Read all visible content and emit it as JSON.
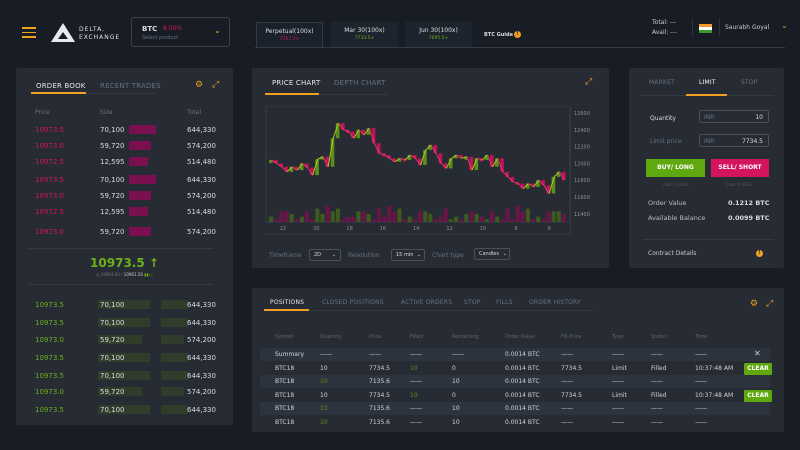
{
  "header": {
    "brand_line1": "DELTA.",
    "brand_line2": "EXCHANGE",
    "product": {
      "symbol": "BTC",
      "change": "8.00%",
      "placeholder": "Select product"
    },
    "contracts": [
      {
        "label": "Perpetual(100x)",
        "price": "7767.5+",
        "active": true,
        "color": "#d4145f"
      },
      {
        "label": "Mar 30(100x)",
        "price": "7733.5+",
        "active": false,
        "color": "#6cb11a"
      },
      {
        "label": "Jun 30(100x)",
        "price": "7695.5+",
        "active": false,
        "color": "#6cb11a"
      }
    ],
    "guide": "BTC Guide",
    "total_label": "Total:",
    "total_value": "---",
    "avail_label": "Avail:",
    "avail_value": "---",
    "user": "Saurabh Goyal"
  },
  "orderbook": {
    "tabs": [
      "ORDER BOOK",
      "RECENT TRADES"
    ],
    "columns": [
      "Price",
      "Size",
      "Total"
    ],
    "asks": [
      {
        "price": "10973.5",
        "size": "70,100",
        "total": "644,330",
        "depth": 1.0
      },
      {
        "price": "10973.0",
        "size": "59,720",
        "total": "574,200",
        "depth": 0.8
      },
      {
        "price": "10972.5",
        "size": "12,595",
        "total": "514,480",
        "depth": 0.7
      },
      {
        "price": "10973.5",
        "size": "70,100",
        "total": "644,330",
        "depth": 1.0
      },
      {
        "price": "10973.0",
        "size": "59,720",
        "total": "574,200",
        "depth": 0.8
      },
      {
        "price": "10972.5",
        "size": "12,595",
        "total": "514,480",
        "depth": 0.7
      },
      {
        "price": "10973.0",
        "size": "59,720",
        "total": "574,200",
        "depth": 0.8
      }
    ],
    "last_price": "10973.5",
    "index_price": "10964.00",
    "mark_price": "10961.56",
    "bids": [
      {
        "price": "10973.5",
        "size": "70,100",
        "total": "644,330",
        "depth": 1.0
      },
      {
        "price": "10973.5",
        "size": "70,100",
        "total": "644,330",
        "depth": 1.0
      },
      {
        "price": "10973.0",
        "size": "59,720",
        "total": "574,200",
        "depth": 0.85
      },
      {
        "price": "10973.5",
        "size": "70,100",
        "total": "644,330",
        "depth": 1.0
      },
      {
        "price": "10973.5",
        "size": "70,100",
        "total": "644,330",
        "depth": 1.0
      },
      {
        "price": "10973.0",
        "size": "59,720",
        "total": "574,200",
        "depth": 0.85
      },
      {
        "price": "10973.5",
        "size": "70,100",
        "total": "644,330",
        "depth": 1.0
      }
    ]
  },
  "chart": {
    "tabs": [
      "PRICE CHART",
      "DEPTH CHART"
    ],
    "timeframe_label": "Timeframe",
    "timeframe": "2D",
    "resolution_label": "Resolution",
    "resolution": "15 min",
    "charttype_label": "Chart type",
    "charttype": "Candles"
  },
  "chart_data": {
    "type": "candlestick",
    "xticks": [
      "22",
      "20",
      "18",
      "16",
      "14",
      "12",
      "10",
      "8",
      "6"
    ],
    "yticks": [
      12600,
      12400,
      12200,
      12000,
      11800,
      11600,
      11400
    ],
    "ylim": [
      11350,
      12650
    ],
    "close": [
      12040,
      12000,
      11960,
      11900,
      11960,
      11920,
      12000,
      11950,
      11860,
      12050,
      12080,
      11960,
      12300,
      12480,
      12400,
      12380,
      12300,
      12400,
      12340,
      12420,
      12240,
      12120,
      12100,
      12060,
      12020,
      12060,
      12040,
      12100,
      12060,
      11980,
      12160,
      12220,
      12120,
      12000,
      11940,
      12060,
      12100,
      12060,
      12080,
      11920,
      12060,
      12040,
      12100,
      11960,
      12060,
      11900,
      11840,
      11780,
      11760,
      11700,
      11760,
      11720,
      11800,
      11740,
      11640,
      11840,
      11900,
      11800
    ],
    "volume": [
      2,
      1,
      4,
      4,
      3,
      1,
      2,
      4,
      1,
      5,
      3,
      6,
      4,
      5,
      1,
      2,
      2,
      4,
      4,
      3,
      1,
      5,
      2,
      6,
      4,
      5,
      1,
      2,
      1,
      4,
      4,
      3,
      1,
      2,
      5,
      1,
      2,
      1,
      3,
      4,
      3,
      2,
      1,
      4,
      2,
      1,
      5,
      1,
      6,
      4,
      5,
      1,
      2,
      1,
      4,
      4,
      4,
      3
    ]
  },
  "order_form": {
    "tabs": [
      "MARKET",
      "LIMIT",
      "STOP"
    ],
    "quantity_label": "Quantity",
    "quantity_unit": "INR",
    "quantity": "10",
    "limit_label": "Limit price",
    "limit_unit": "INR",
    "limit": "7734.5",
    "buy": "BUY/ LONG",
    "sell": "SELL/ SHORT",
    "buy_cost": "Cost: 0.0013",
    "sell_cost": "Cost: 0.0013",
    "order_value_label": "Order Value",
    "order_value": "0.1212 BTC",
    "balance_label": "Available Balance",
    "balance": "0.0099 BTC",
    "contract_details": "Contract Details"
  },
  "positions": {
    "tabs": [
      "POSITIONS",
      "CLOSED POSITIONS",
      "ACTIVE ORDERS",
      "STOP",
      "FILLS",
      "ORDER HISTORY"
    ],
    "columns": [
      "Symbol",
      "Quantity",
      "Price",
      "Filled",
      "Remaining",
      "Order Value",
      "Fill Price",
      "Type",
      "Status",
      "Time"
    ],
    "rows": [
      {
        "cells": [
          "Summary",
          "——",
          "——",
          "——",
          "——",
          "0.0014 BTC",
          "——",
          "——",
          "——",
          "——"
        ],
        "action": "close"
      },
      {
        "cells": [
          "BTC18",
          "10",
          "7734.5",
          "10",
          "0",
          "0.0014 BTC",
          "7734.5",
          "Limit",
          "Filled",
          "10:37:48 AM"
        ],
        "action": "CLEAR"
      },
      {
        "cells": [
          "BTC18",
          "10",
          "7135.6",
          "——",
          "10",
          "0.0014 BTC",
          "——",
          "——",
          "——",
          "——"
        ],
        "action": ""
      },
      {
        "cells": [
          "BTC18",
          "10",
          "7734.5",
          "10",
          "0",
          "0.0014 BTC",
          "7734.5",
          "Limit",
          "Filled",
          "10:37:48 AM"
        ],
        "action": "CLEAR"
      },
      {
        "cells": [
          "BTC18",
          "10",
          "7135.6",
          "——",
          "10",
          "0.0014 BTC",
          "——",
          "——",
          "——",
          "——"
        ],
        "action": ""
      },
      {
        "cells": [
          "BTC18",
          "10",
          "7135.6",
          "——",
          "10",
          "0.0014 BTC",
          "——",
          "——",
          "——",
          "——"
        ],
        "action": ""
      }
    ]
  },
  "colors": {
    "accent": "#f0a020",
    "buy": "#6cb11a",
    "sell": "#d4145f",
    "panel": "#262b34",
    "background": "#171c25"
  }
}
